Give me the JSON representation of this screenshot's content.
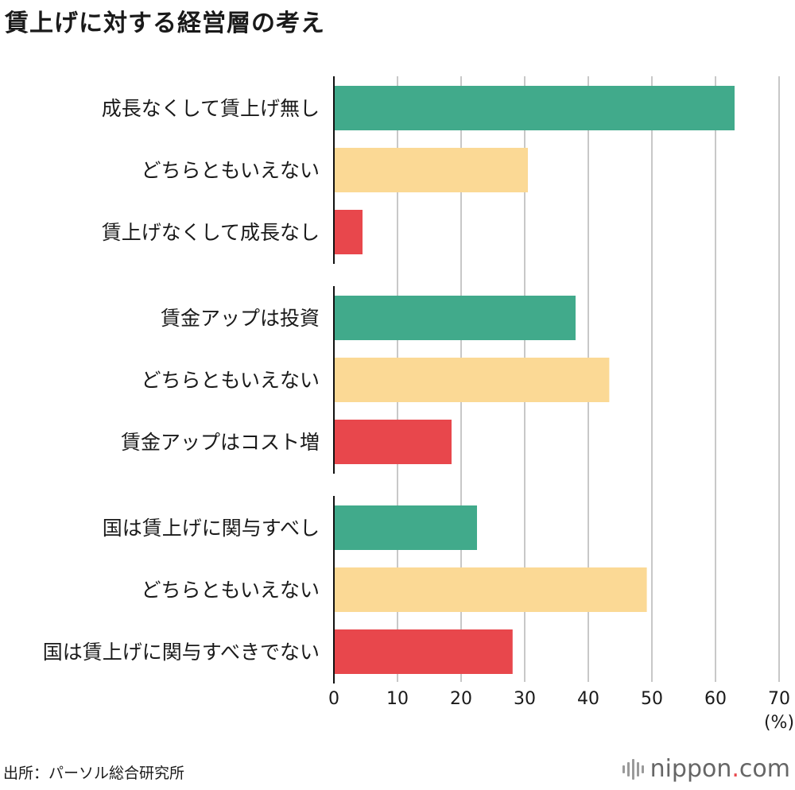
{
  "title": "賃上げに対する経営層の考え",
  "source": "出所：パーソル総合研究所",
  "brand": {
    "name": "nippon",
    "dot": ".",
    "tld": "com",
    "icon": "nippon-logo-icon"
  },
  "colors": {
    "positive": "#41aa8b",
    "neutral": "#fbd995",
    "negative": "#e8474c",
    "grid": "#c8c8c8",
    "axis": "#111111"
  },
  "chart_data": {
    "type": "bar",
    "orientation": "horizontal",
    "unit": "(%)",
    "xlim": [
      0,
      70
    ],
    "ticks": [
      0,
      10,
      20,
      30,
      40,
      50,
      60,
      70
    ],
    "grid": true,
    "groups": [
      {
        "bars": [
          {
            "label": "成長なくして賃上げ無し",
            "value": 63,
            "color": "#41aa8b"
          },
          {
            "label": "どちらともいえない",
            "value": 30.5,
            "color": "#fbd995"
          },
          {
            "label": "賃上げなくして成長なし",
            "value": 4.5,
            "color": "#e8474c"
          }
        ]
      },
      {
        "bars": [
          {
            "label": "賃金アップは投資",
            "value": 38,
            "color": "#41aa8b"
          },
          {
            "label": "どちらともいえない",
            "value": 43.3,
            "color": "#fbd995"
          },
          {
            "label": "賃金アップはコスト増",
            "value": 18.5,
            "color": "#e8474c"
          }
        ]
      },
      {
        "bars": [
          {
            "label": "国は賃上げに関与すべし",
            "value": 22.5,
            "color": "#41aa8b"
          },
          {
            "label": "どちらともいえない",
            "value": 49.2,
            "color": "#fbd995"
          },
          {
            "label": "国は賃上げに関与すべきでない",
            "value": 28.1,
            "color": "#e8474c"
          }
        ]
      }
    ]
  }
}
